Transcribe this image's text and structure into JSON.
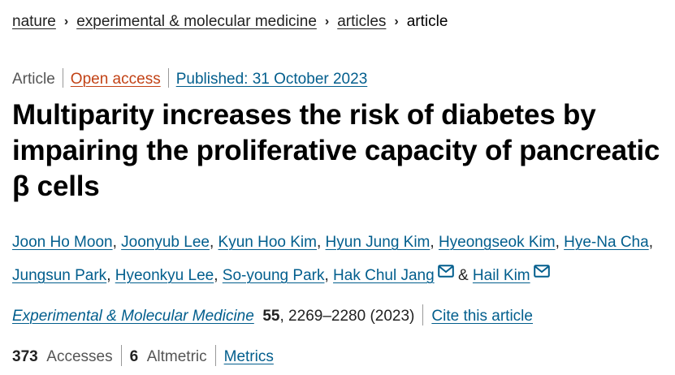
{
  "breadcrumb": {
    "items": [
      "nature",
      "experimental & molecular medicine",
      "articles"
    ],
    "current": "article"
  },
  "meta": {
    "type": "Article",
    "access": "Open access",
    "published": "Published: 31 October 2023"
  },
  "title": "Multiparity increases the risk of diabetes by impairing the proliferative capacity of pancreatic β cells",
  "authors": [
    "Joon Ho Moon",
    "Joonyub Lee",
    "Kyun Hoo Kim",
    "Hyun Jung Kim",
    "Hyeongseok Kim",
    "Hye-Na Cha",
    "Jungsun Park",
    "Hyeonkyu Lee",
    "So-young Park",
    "Hak Chul Jang",
    "Hail Kim"
  ],
  "authors_separators": {
    "comma": ", ",
    "and": "&"
  },
  "citation": {
    "journal": "Experimental & Molecular Medicine",
    "volume": "55",
    "pages": ", 2269–2280 (2023)",
    "cite_label": "Cite this article"
  },
  "metrics": {
    "accesses_count": "373",
    "accesses_label": "Accesses",
    "altmetric_count": "6",
    "altmetric_label": "Altmetric",
    "metrics_label": "Metrics"
  },
  "colors": {
    "link_blue": "#025e8d",
    "open_access_orange": "#c24215"
  },
  "icons": {
    "corresponding_author": "mail-icon"
  }
}
